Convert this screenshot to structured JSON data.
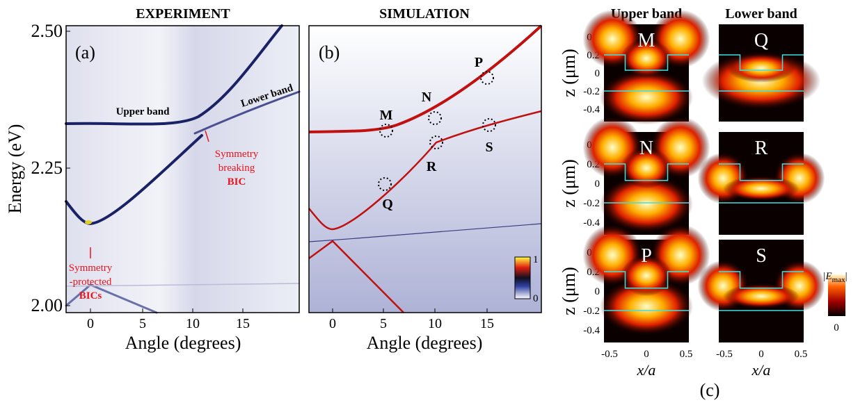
{
  "panel_a": {
    "title": "EXPERIMENT",
    "label": "(a)",
    "y_axis_label": "Energy (eV)",
    "x_axis_label": "Angle (degrees)",
    "yticks": [
      "2.50",
      "2.25",
      "2.00"
    ],
    "xticks": [
      "0",
      "5",
      "10",
      "15"
    ],
    "annotations": {
      "upper_band": "Upper band",
      "lower_band": "Lower band",
      "symmetry_breaking": [
        "Symmetry",
        "breaking",
        "BIC"
      ],
      "symmetry_protected": [
        "Symmetry",
        "-protected",
        "BICs"
      ]
    }
  },
  "panel_b": {
    "title": "SIMULATION",
    "label": "(b)",
    "x_axis_label": "Angle (degrees)",
    "xticks": [
      "0",
      "5",
      "10",
      "15"
    ],
    "points": [
      "M",
      "N",
      "P",
      "Q",
      "R",
      "S"
    ],
    "colorbar": [
      "1",
      "0"
    ]
  },
  "panel_c": {
    "label": "(c)",
    "columns": [
      "Upper band",
      "Lower band"
    ],
    "maps": [
      [
        "M",
        "Q"
      ],
      [
        "N",
        "R"
      ],
      [
        "P",
        "S"
      ]
    ],
    "yticks": [
      "0.4",
      "0.2",
      "0",
      "-0.2",
      "-0.4"
    ],
    "xticks": [
      "-0.5",
      "0",
      "0.5"
    ],
    "y_axis_label": "z (μm)",
    "x_axis_label": "x/a",
    "colorbar": {
      "main": "|E",
      "sub": "max",
      "end": "|",
      "zero": "0"
    }
  }
}
